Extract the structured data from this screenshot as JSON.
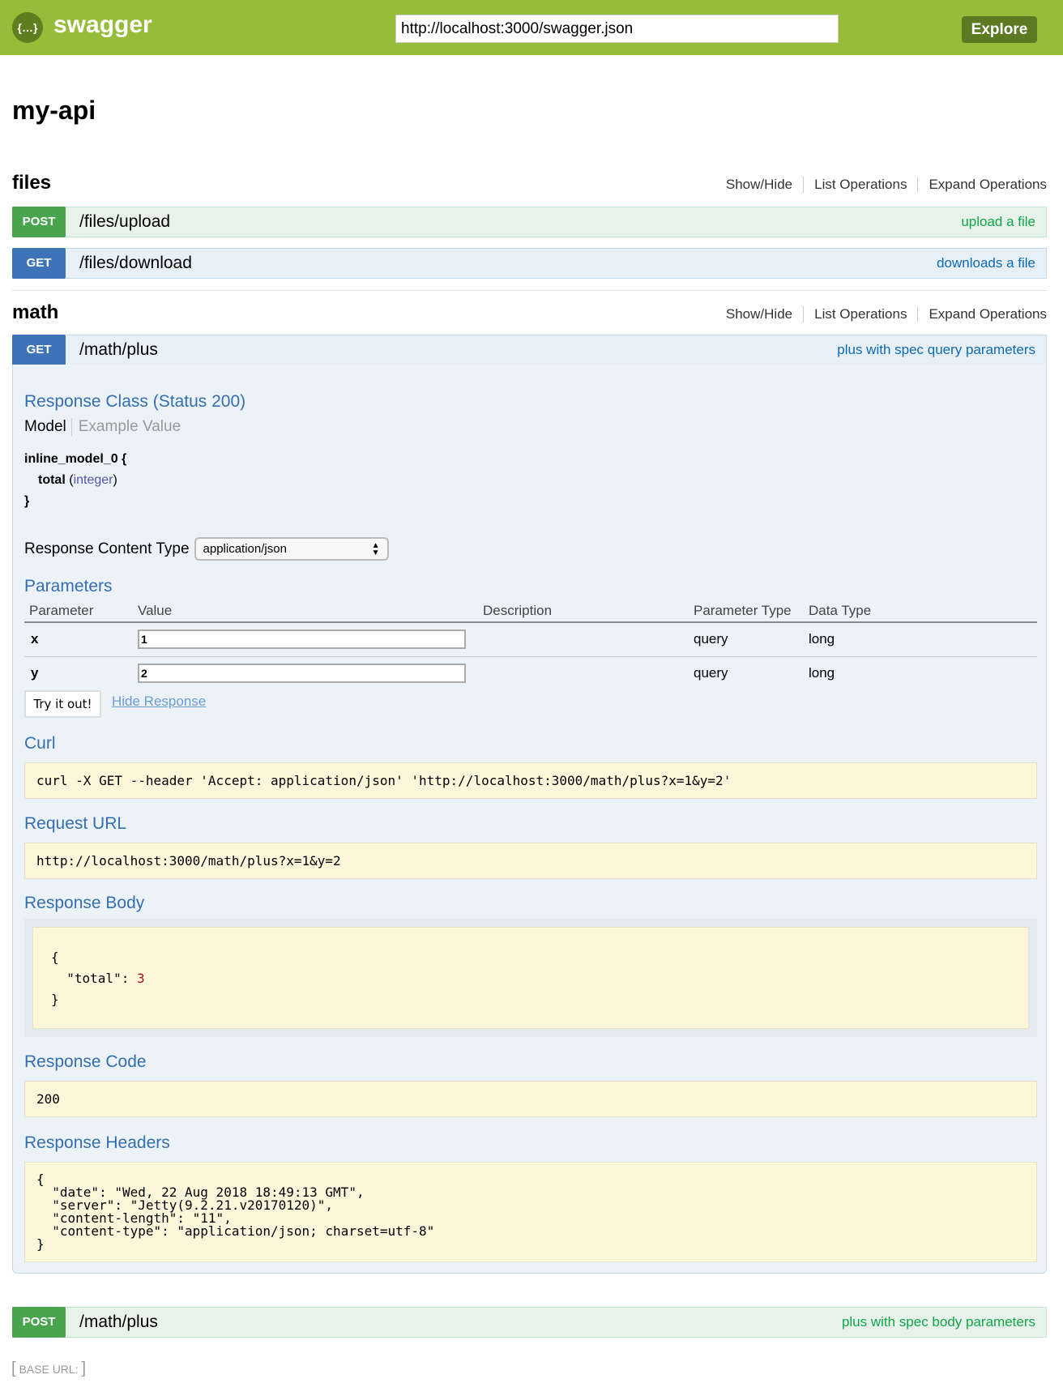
{
  "header": {
    "brand": "swagger",
    "url_value": "http://localhost:3000/swagger.json",
    "explore_label": "Explore",
    "colors": {
      "bar": "#96bd3a",
      "button": "#5c7a22"
    }
  },
  "api_title": "my-api",
  "section_links": {
    "show_hide": "Show/Hide",
    "list": "List Operations",
    "expand": "Expand Operations"
  },
  "sections": [
    {
      "name": "files",
      "operations": [
        {
          "method": "POST",
          "path": "/files/upload",
          "summary": "upload a file"
        },
        {
          "method": "GET",
          "path": "/files/download",
          "summary": "downloads a file"
        }
      ]
    },
    {
      "name": "math",
      "operations": [
        {
          "method": "GET",
          "path": "/math/plus",
          "summary": "plus with spec query parameters"
        },
        {
          "method": "POST",
          "path": "/math/plus",
          "summary": "plus with spec body parameters"
        }
      ]
    }
  ],
  "expanded": {
    "response_class_title": "Response Class (Status 200)",
    "model_tab": "Model",
    "example_tab": "Example Value",
    "model_name": "inline_model_0 {",
    "model_prop": "total",
    "model_type": "integer",
    "model_close": "}",
    "content_type_label": "Response Content Type",
    "content_type_value": "application/json",
    "parameters_title": "Parameters",
    "param_headers": [
      "Parameter",
      "Value",
      "Description",
      "Parameter Type",
      "Data Type"
    ],
    "params": [
      {
        "name": "x",
        "value": "1",
        "description": "",
        "type": "query",
        "data_type": "long"
      },
      {
        "name": "y",
        "value": "2",
        "description": "",
        "type": "query",
        "data_type": "long"
      }
    ],
    "try_label": "Try it out!",
    "hide_label": "Hide Response",
    "curl_title": "Curl",
    "curl": "curl -X GET --header 'Accept: application/json' 'http://localhost:3000/math/plus?x=1&y=2'",
    "request_url_title": "Request URL",
    "request_url": "http://localhost:3000/math/plus?x=1&y=2",
    "response_body_title": "Response Body",
    "body_open": "{",
    "body_key": "\"total\": ",
    "body_value": "3",
    "body_close": "}",
    "response_code_title": "Response Code",
    "response_code": "200",
    "response_headers_title": "Response Headers",
    "response_headers": "{\n  \"date\": \"Wed, 22 Aug 2018 18:49:13 GMT\",\n  \"server\": \"Jetty(9.2.21.v20170120)\",\n  \"content-length\": \"11\",\n  \"content-type\": \"application/json; charset=utf-8\"\n}"
  },
  "footer": {
    "base_url": "BASE URL:"
  }
}
